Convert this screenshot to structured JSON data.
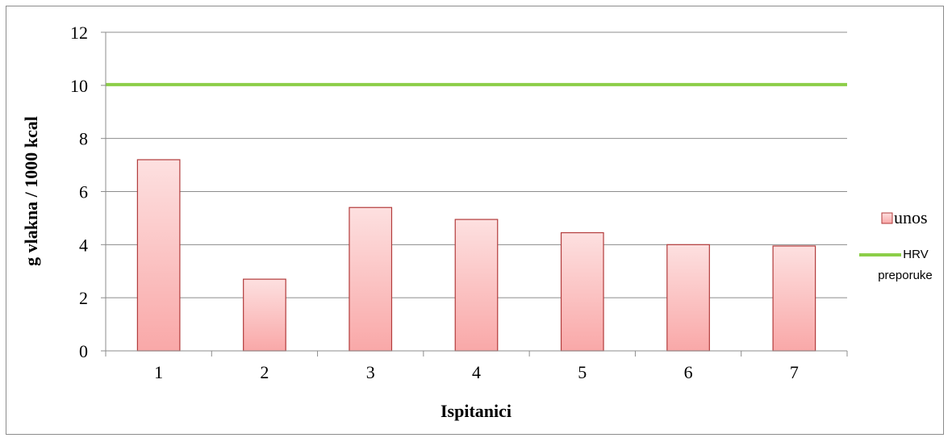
{
  "chart_data": {
    "type": "bar",
    "title": "",
    "xlabel": "Ispitanici",
    "ylabel": "g vlakna / 1000 kcal",
    "categories": [
      "1",
      "2",
      "3",
      "4",
      "5",
      "6",
      "7"
    ],
    "yticks": [
      "0",
      "2",
      "4",
      "6",
      "8",
      "10",
      "12"
    ],
    "ylim": [
      0,
      12
    ],
    "grid": true,
    "legend_position": "right",
    "series": [
      {
        "name": "unos",
        "type": "bar",
        "values": [
          7.2,
          2.7,
          5.4,
          4.95,
          4.45,
          4.0,
          3.95
        ],
        "color_top": "#fde0e0",
        "color_bottom": "#f9a8a8",
        "border_color": "#b23b3b"
      },
      {
        "name": "HRV\npreporuke",
        "name_lines": [
          "HRV",
          "preporuke"
        ],
        "type": "line",
        "values": [
          10.03,
          10.03,
          10.03,
          10.03,
          10.03,
          10.03,
          10.03
        ],
        "color": "#8cce48"
      }
    ]
  }
}
